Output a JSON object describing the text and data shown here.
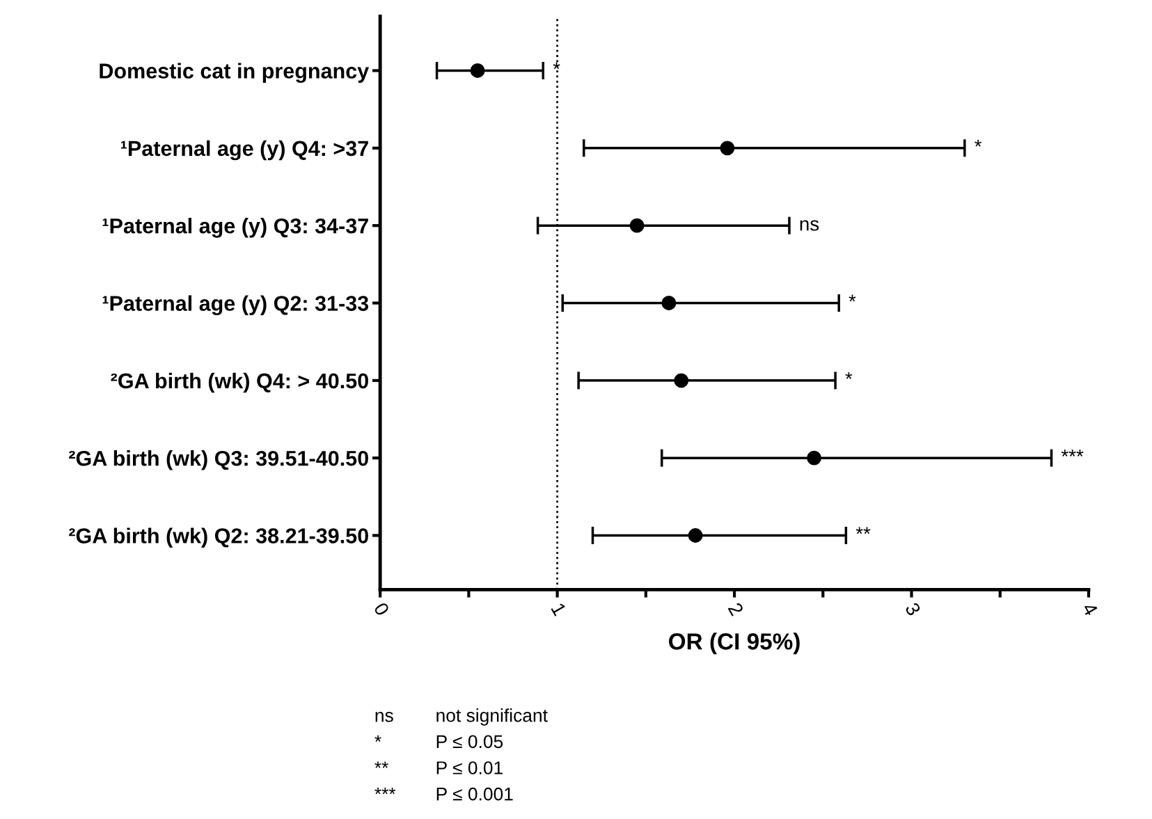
{
  "chart_data": {
    "type": "scatter",
    "orientation": "horizontal",
    "xlabel": "OR (CI 95%)",
    "categories": [
      "Domestic cat in pregnancy",
      "¹Paternal age (y) Q4: >37",
      "¹Paternal age (y) Q3: 34-37",
      "¹Paternal age (y) Q2: 31-33",
      "²GA birth (wk) Q4: > 40.50",
      "²GA birth (wk) Q3: 39.51-40.50",
      "²GA birth (wk) Q2: 38.21-39.50"
    ],
    "color": "#000000",
    "values": [
      0.55,
      1.96,
      1.45,
      1.63,
      1.7,
      2.45,
      1.78
    ],
    "errors": [
      [
        0.32,
        0.92
      ],
      [
        1.15,
        3.3
      ],
      [
        0.89,
        2.31
      ],
      [
        1.03,
        2.59
      ],
      [
        1.12,
        2.57
      ],
      [
        1.59,
        3.79
      ],
      [
        1.2,
        2.63
      ]
    ],
    "marker": "circle",
    "xlim": [
      0,
      4
    ],
    "xticks": [
      0,
      {
        "value": 0.5,
        "label": null
      },
      1,
      {
        "value": 1.5,
        "label": null
      },
      2,
      {
        "value": 2.5,
        "label": null
      },
      3,
      {
        "value": 3.5,
        "label": null
      },
      4
    ],
    "grid": false,
    "legend": false,
    "ref_lines": [
      {
        "axis": "x",
        "value": 1,
        "label": null,
        "line_style": "dotted",
        "color": "#000000"
      }
    ],
    "annotations": [
      "*",
      "*",
      "ns",
      "*",
      "*",
      "***",
      "**",
      "ns",
      "not significant",
      "*",
      "P ≤ 0.05",
      "**",
      "P ≤ 0.01",
      "***",
      "P ≤ 0.001"
    ]
  }
}
